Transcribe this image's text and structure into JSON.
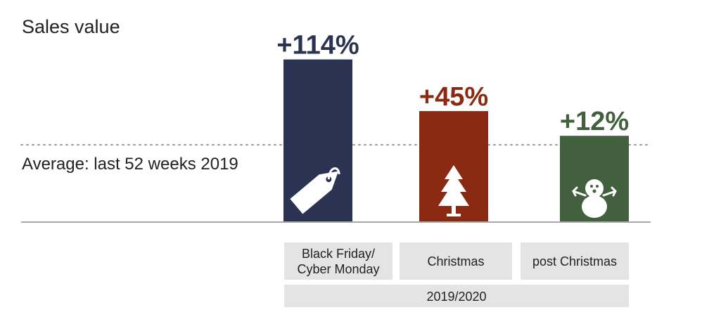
{
  "chart_data": {
    "type": "bar",
    "title": "Sales value",
    "reference_line": {
      "label": "Average: last 52 weeks 2019",
      "value": 0,
      "style": "dotted"
    },
    "categories": [
      "Black Friday/\nCyber Monday",
      "Christmas",
      "post Christmas"
    ],
    "values": [
      114,
      45,
      12
    ],
    "value_labels": [
      "+114%",
      "+45%",
      "+12%"
    ],
    "colors": [
      "#2b3352",
      "#8a2a12",
      "#43603e"
    ],
    "icons": [
      "price-tag-icon",
      "christmas-tree-icon",
      "snowman-icon"
    ],
    "group_label": "2019/2020",
    "ylim": [
      -70,
      125
    ],
    "grid": false,
    "legend": "none"
  }
}
